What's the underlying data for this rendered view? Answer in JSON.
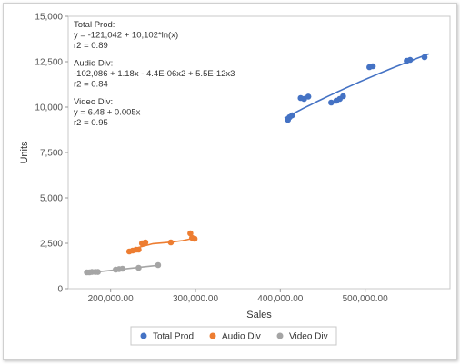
{
  "chart_data": {
    "type": "scatter",
    "xlabel": "Sales",
    "ylabel": "Units",
    "xlim": [
      150000,
      600000
    ],
    "ylim": [
      0,
      15000
    ],
    "x_ticks": [
      {
        "value": 200000,
        "label": "200,000.00"
      },
      {
        "value": 300000,
        "label": "300,000.00"
      },
      {
        "value": 400000,
        "label": "400,000.00"
      },
      {
        "value": 500000,
        "label": "500,000.00"
      }
    ],
    "y_ticks": [
      {
        "value": 0,
        "label": "0"
      },
      {
        "value": 2500,
        "label": "2,500"
      },
      {
        "value": 5000,
        "label": "5,000"
      },
      {
        "value": 7500,
        "label": "7,500"
      },
      {
        "value": 10000,
        "label": "10,000"
      },
      {
        "value": 12500,
        "label": "12,500"
      },
      {
        "value": 15000,
        "label": "15,000"
      }
    ],
    "legend_position": "bottom",
    "series": [
      {
        "name": "Total Prod",
        "color": "#4472c4",
        "points": [
          [
            409000,
            9300
          ],
          [
            411000,
            9450
          ],
          [
            414000,
            9550
          ],
          [
            424000,
            10500
          ],
          [
            428000,
            10450
          ],
          [
            433000,
            10580
          ],
          [
            460000,
            10250
          ],
          [
            466000,
            10350
          ],
          [
            470000,
            10450
          ],
          [
            474000,
            10600
          ],
          [
            505000,
            12200
          ],
          [
            509000,
            12250
          ],
          [
            549000,
            12550
          ],
          [
            553000,
            12600
          ],
          [
            570000,
            12750
          ]
        ],
        "trend": {
          "kind": "log",
          "a": -121042,
          "b": 10102,
          "range": [
            405000,
            575000
          ]
        },
        "annotation": [
          "Total Prod:",
          "y = -121,042 + 10,102*ln(x)",
          "r2 = 0.89"
        ]
      },
      {
        "name": "Audio Div",
        "color": "#ed7d31",
        "points": [
          [
            222000,
            2050
          ],
          [
            226000,
            2100
          ],
          [
            230000,
            2150
          ],
          [
            233000,
            2150
          ],
          [
            237000,
            2500
          ],
          [
            241000,
            2550
          ],
          [
            271000,
            2550
          ],
          [
            294000,
            3050
          ],
          [
            296000,
            2800
          ],
          [
            299000,
            2750
          ]
        ],
        "trend": {
          "kind": "points",
          "points": [
            [
              220000,
              2050
            ],
            [
              235000,
              2300
            ],
            [
              250000,
              2480
            ],
            [
              270000,
              2560
            ],
            [
              285000,
              2650
            ],
            [
              300000,
              2800
            ]
          ]
        },
        "annotation": [
          "Audio Div:",
          "-102,086 + 1.18x - 4.4E-06x2 + 5.5E-12x3",
          "r2 = 0.84"
        ]
      },
      {
        "name": "Video Div",
        "color": "#a5a5a5",
        "points": [
          [
            172000,
            900
          ],
          [
            175000,
            900
          ],
          [
            178000,
            920
          ],
          [
            182000,
            920
          ],
          [
            185000,
            920
          ],
          [
            206000,
            1050
          ],
          [
            210000,
            1080
          ],
          [
            214000,
            1100
          ],
          [
            233000,
            1150
          ],
          [
            256000,
            1300
          ]
        ],
        "trend": {
          "kind": "linear",
          "a": 6.48,
          "b": 0.005,
          "range": [
            170000,
            258000
          ]
        },
        "annotation": [
          "Video Div:",
          "y = 6.48 + 0.005x",
          "r2 = 0.95"
        ]
      }
    ]
  }
}
